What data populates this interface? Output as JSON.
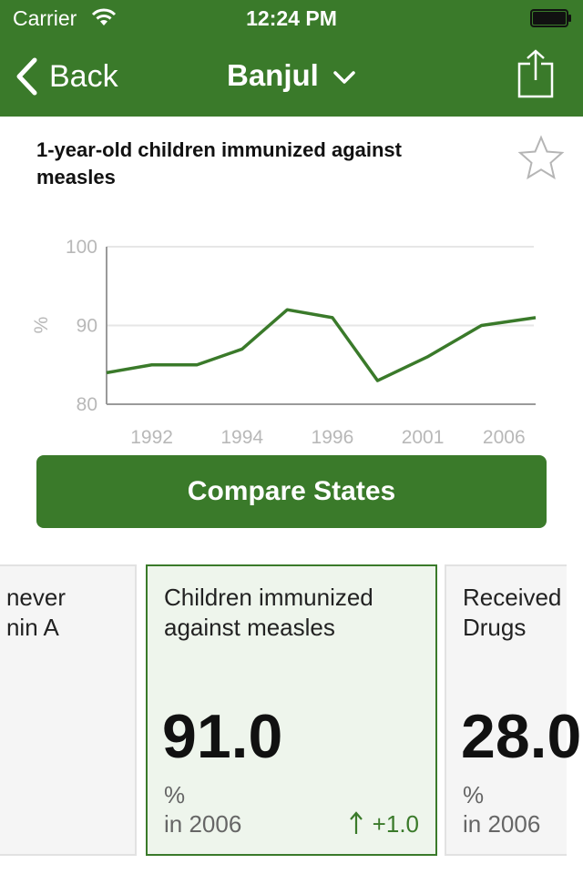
{
  "status_bar": {
    "carrier": "Carrier",
    "time": "12:24 PM"
  },
  "nav": {
    "back_label": "Back",
    "title": "Banjul"
  },
  "indicator": {
    "title": "1-year-old children immunized against measles"
  },
  "chart_data": {
    "type": "line",
    "x": [
      "1991",
      "1992",
      "1993",
      "1994",
      "1995",
      "1996",
      "1997",
      "2001",
      "2004",
      "2006"
    ],
    "series": [
      {
        "values": [
          84,
          85,
          85,
          87,
          92,
          91,
          83,
          86,
          90,
          91
        ]
      }
    ],
    "x_tick_labels": [
      "1992",
      "1994",
      "1996",
      "2001",
      "2006"
    ],
    "y_ticks": [
      "100",
      "90",
      "80"
    ],
    "ylabel": "%",
    "ylim": [
      80,
      100
    ],
    "grid": true,
    "line_color": "#3a7a2a"
  },
  "compare_button": "Compare States",
  "tiles": [
    {
      "title_line1": "never",
      "title_line2": "nin A",
      "value": "",
      "unit": "",
      "year": "",
      "change": ""
    },
    {
      "title_line1": "Children immunized",
      "title_line2": "against measles",
      "value": "91.0",
      "unit": "%",
      "year": "in 2006",
      "change": "+1.0"
    },
    {
      "title_line1": "Received",
      "title_line2": "Drugs",
      "value": "28.0",
      "unit": "%",
      "year": "in 2006",
      "change": ""
    }
  ],
  "colors": {
    "brand_green": "#3a7a2a",
    "selected_tile_bg": "#eef5ec",
    "tile_bg": "#f5f5f5"
  }
}
